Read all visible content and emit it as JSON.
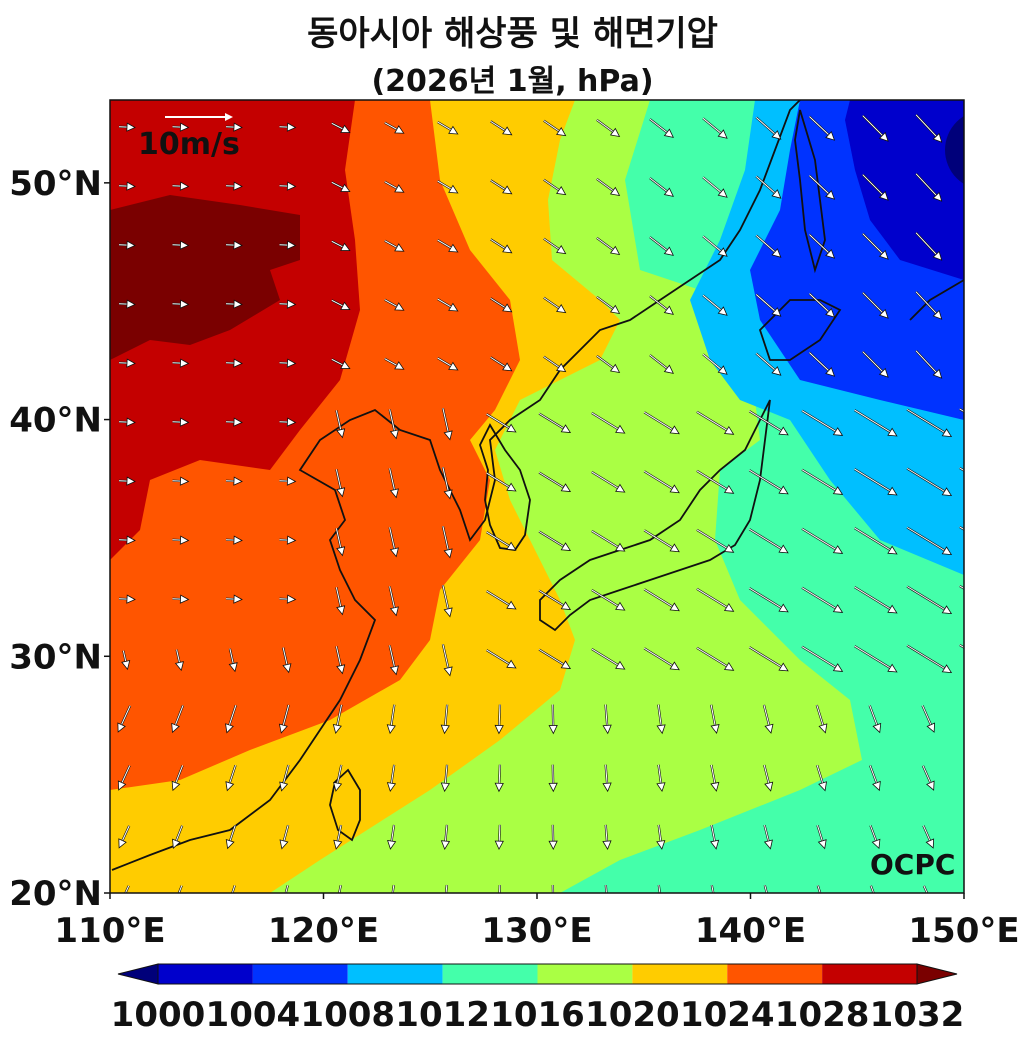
{
  "title": "동아시아 해상풍 및 해면기압",
  "subtitle": "(2026년 1월, hPa)",
  "map": {
    "lon_range": [
      110,
      150
    ],
    "lat_range": [
      20,
      53.5
    ],
    "lon_ticks": [
      "110°E",
      "120°E",
      "130°E",
      "140°E",
      "150°E"
    ],
    "lon_tick_values": [
      110,
      120,
      130,
      140,
      150
    ],
    "lat_ticks": [
      "20°N",
      "30°N",
      "40°N",
      "50°N"
    ],
    "lat_tick_values": [
      20,
      30,
      40,
      50
    ],
    "wind_reference": {
      "label": "10m/s",
      "speed": 10
    },
    "watermark": "OCPC"
  },
  "colorbar": {
    "levels": [
      "1000",
      "1004",
      "1008",
      "1012",
      "1016",
      "1020",
      "1024",
      "1028",
      "1032"
    ],
    "colors": [
      "#0000cc",
      "#0033ff",
      "#00bfff",
      "#44ffaa",
      "#aaff44",
      "#ffcc00",
      "#ff5500",
      "#c40000",
      "#7a0000"
    ],
    "below_color": "#00007a",
    "above_color": "#7a0000"
  }
}
